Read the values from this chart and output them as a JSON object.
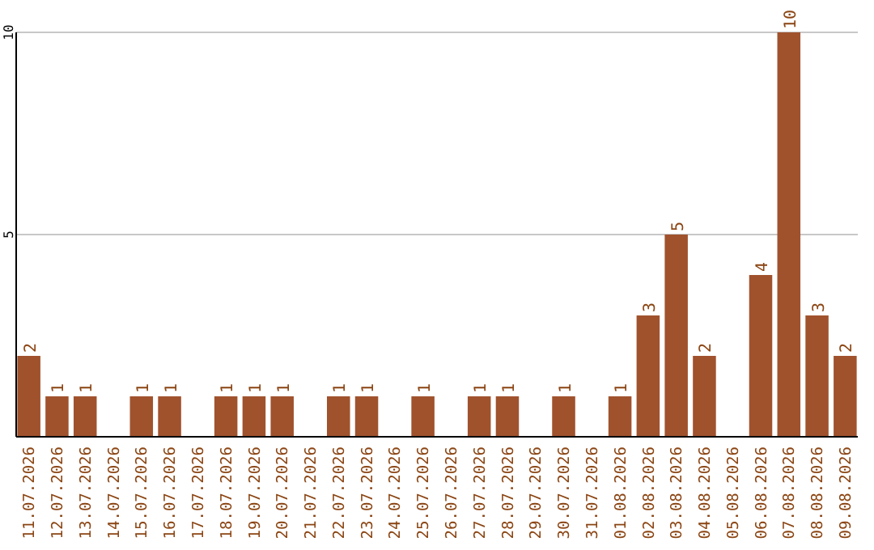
{
  "chart_data": {
    "type": "bar",
    "categories": [
      "11.07.2026",
      "12.07.2026",
      "13.07.2026",
      "14.07.2026",
      "15.07.2026",
      "16.07.2026",
      "17.07.2026",
      "18.07.2026",
      "19.07.2026",
      "20.07.2026",
      "21.07.2026",
      "22.07.2026",
      "23.07.2026",
      "24.07.2026",
      "25.07.2026",
      "26.07.2026",
      "27.07.2026",
      "28.07.2026",
      "29.07.2026",
      "30.07.2026",
      "31.07.2026",
      "01.08.2026",
      "02.08.2026",
      "03.08.2026",
      "04.08.2026",
      "05.08.2026",
      "06.08.2026",
      "07.08.2026",
      "08.08.2026",
      "09.08.2026"
    ],
    "values": [
      2,
      1,
      1,
      0,
      1,
      1,
      0,
      1,
      1,
      1,
      0,
      1,
      1,
      0,
      1,
      0,
      1,
      1,
      0,
      1,
      0,
      1,
      3,
      5,
      2,
      0,
      4,
      10,
      3,
      2
    ],
    "value_labels": [
      "2",
      "1",
      "1",
      null,
      "1",
      "1",
      null,
      "1",
      "1",
      "1",
      null,
      "1",
      "1",
      null,
      "1",
      null,
      "1",
      "1",
      null,
      "1",
      null,
      "1",
      "3",
      "5",
      "2",
      null,
      "4",
      "10",
      "3",
      "2"
    ],
    "color": "#a0522d",
    "ylim": [
      0,
      10
    ],
    "yticks": [
      5,
      10
    ],
    "grid": "y"
  }
}
